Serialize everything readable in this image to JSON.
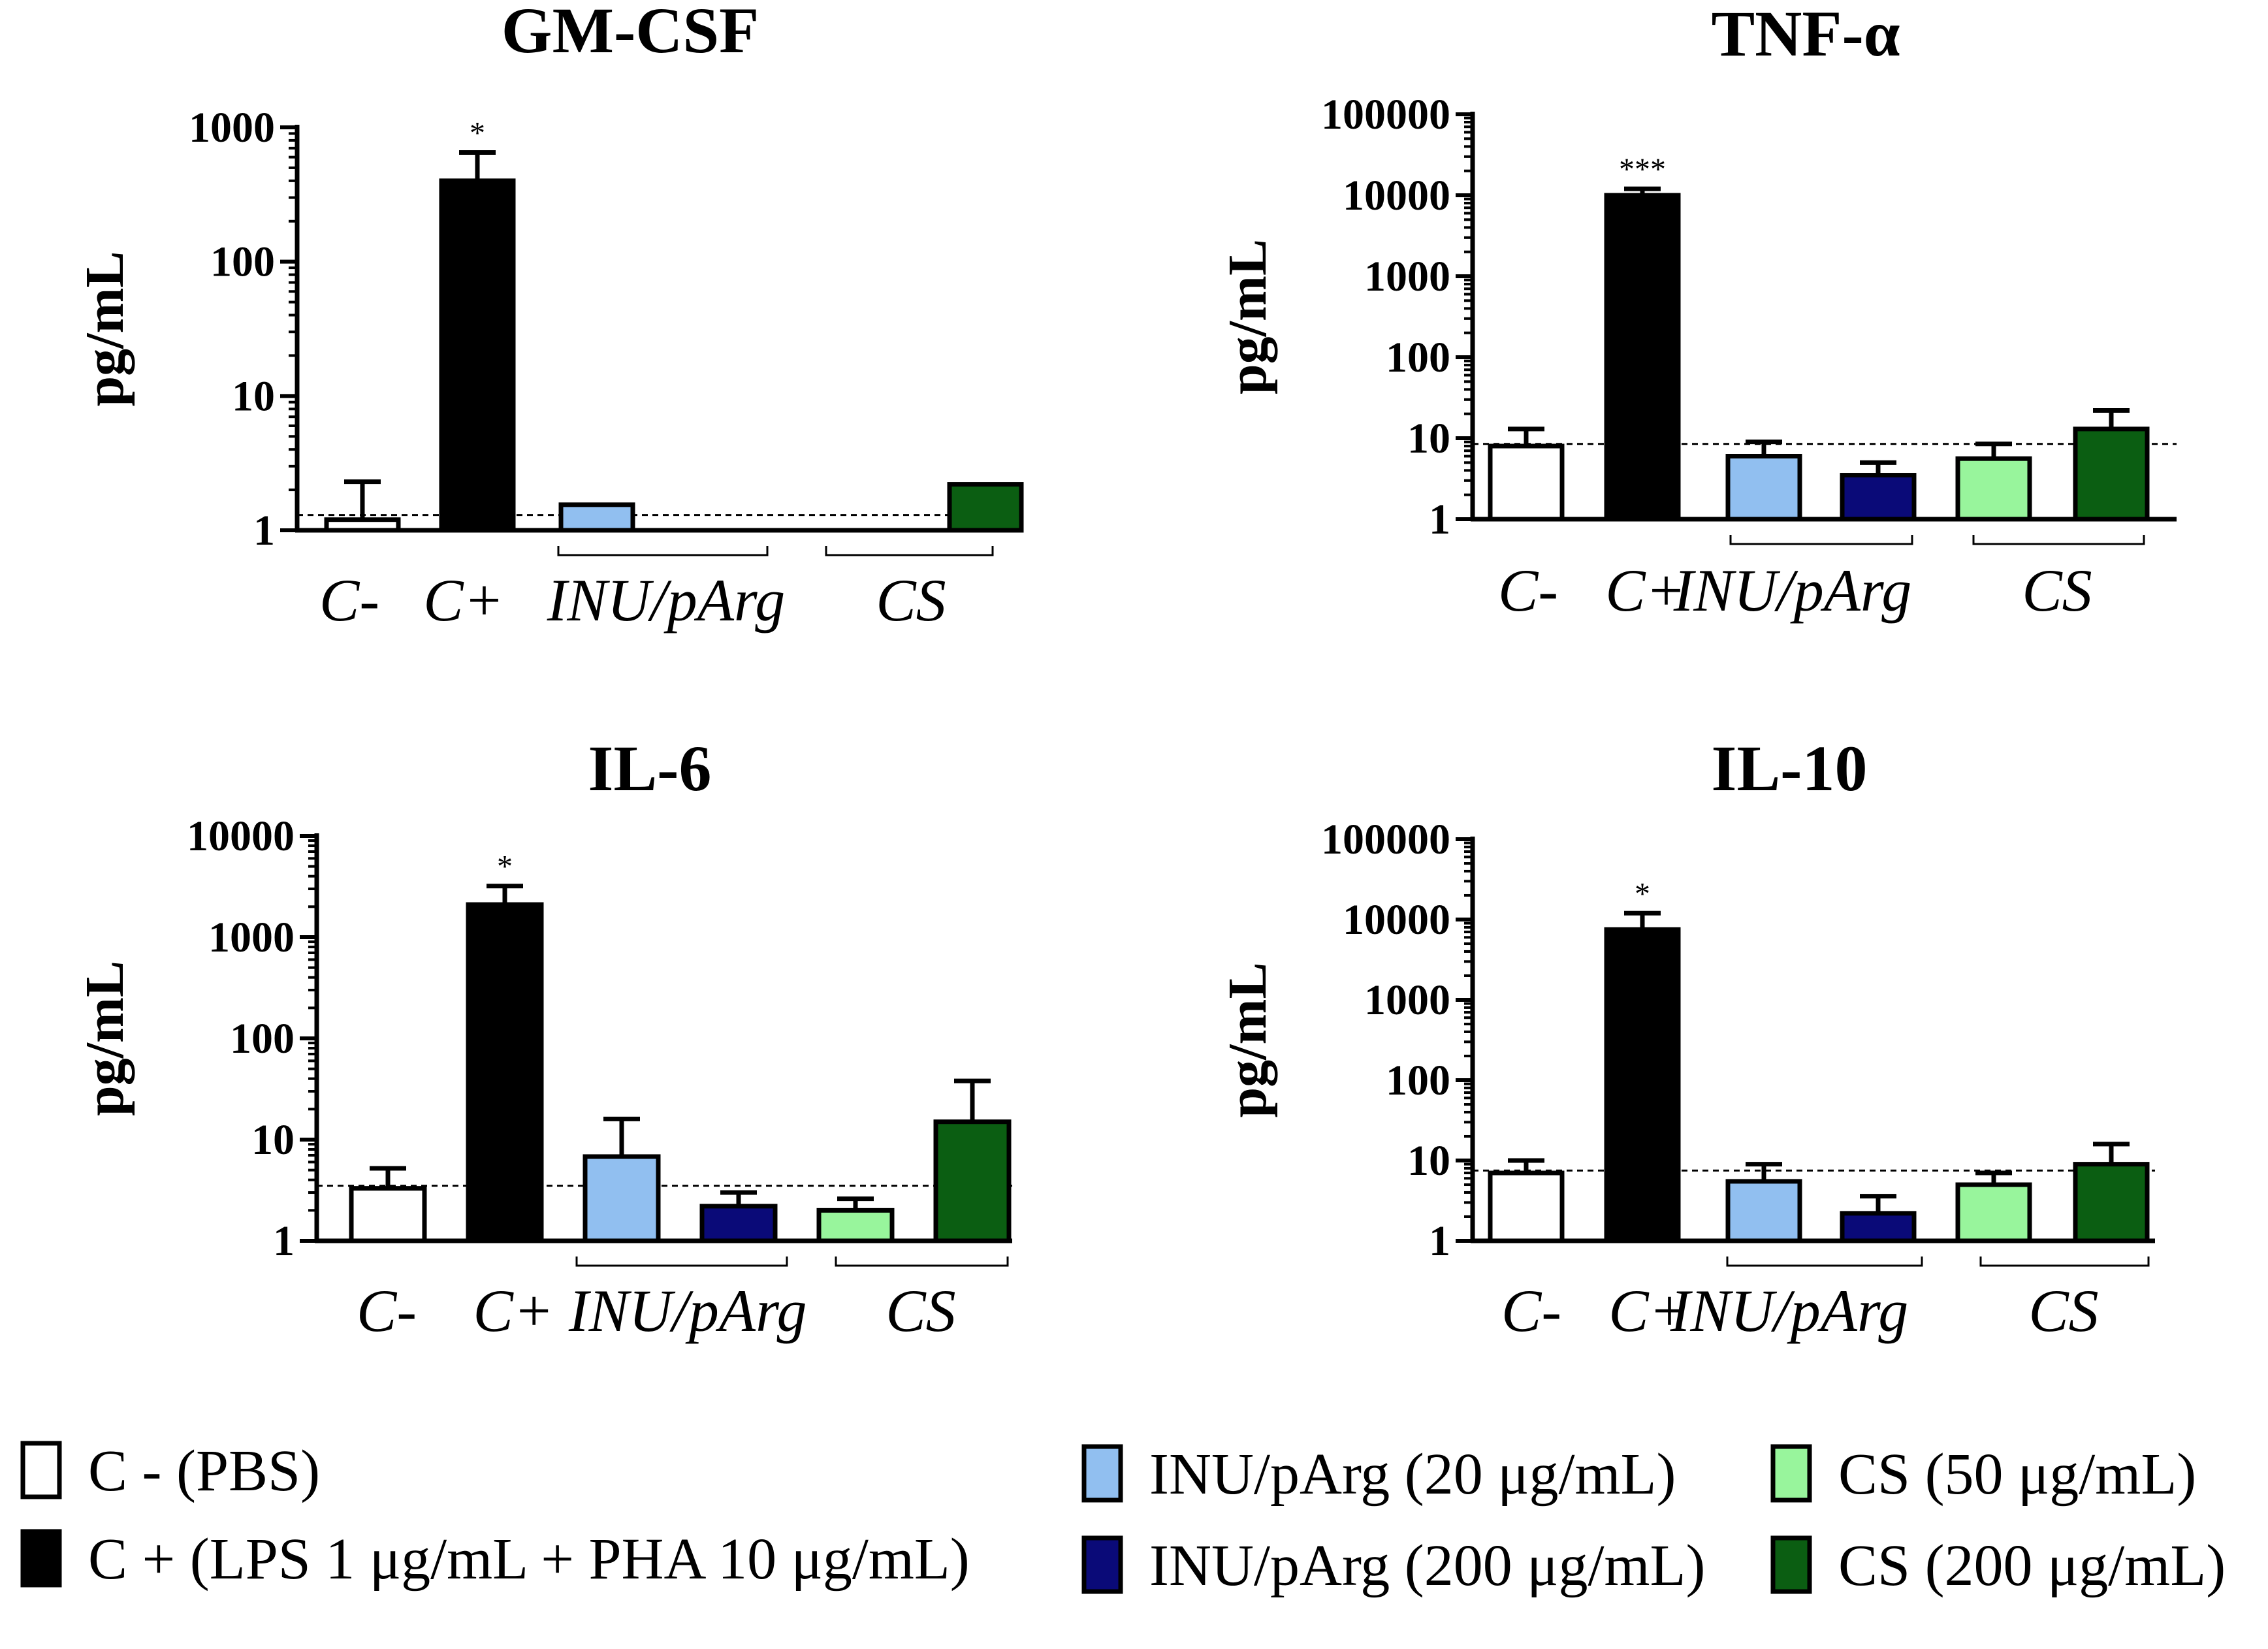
{
  "chart_data": [
    {
      "type": "bar",
      "title": "GM-CSF",
      "ylabel": "pg/mL",
      "yscale": "log",
      "ylim": [
        1,
        1000
      ],
      "yticks": [
        "1",
        "10",
        "100",
        "1000"
      ],
      "categories": [
        "C-",
        "C+",
        "INU/pArg",
        "CS"
      ],
      "series": [
        {
          "name": "C - (PBS)",
          "value": 1.2,
          "error": 2.3
        },
        {
          "name": "C + (LPS 1 μg/mL + PHA 10 μg/mL)",
          "value": 400,
          "error": 650,
          "significance": "*"
        },
        {
          "name": "INU/pArg (20 μg/mL)",
          "value": 1.55,
          "error": null
        },
        {
          "name": "INU/pArg (200 μg/mL)",
          "value": null,
          "error": null
        },
        {
          "name": "CS (50 μg/mL)",
          "value": null,
          "error": null
        },
        {
          "name": "CS (200 μg/mL)",
          "value": 2.2,
          "error": null
        }
      ],
      "detection_limit": 1.3
    },
    {
      "type": "bar",
      "title": "TNF-α",
      "ylabel": "pg/mL",
      "yscale": "log",
      "ylim": [
        1,
        100000
      ],
      "yticks": [
        "1",
        "10",
        "100",
        "1000",
        "10000",
        "100000"
      ],
      "categories": [
        "C-",
        "C+",
        "INU/pArg",
        "CS"
      ],
      "series": [
        {
          "name": "C - (PBS)",
          "value": 8,
          "error": 13
        },
        {
          "name": "C + (LPS 1 μg/mL + PHA 10 μg/mL)",
          "value": 10000,
          "error": 12000,
          "significance": "***"
        },
        {
          "name": "INU/pArg (20 μg/mL)",
          "value": 6,
          "error": 9
        },
        {
          "name": "INU/pArg (200 μg/mL)",
          "value": 3.5,
          "error": 5
        },
        {
          "name": "CS (50 μg/mL)",
          "value": 5.6,
          "error": 8.5
        },
        {
          "name": "CS (200 μg/mL)",
          "value": 13,
          "error": 22
        }
      ],
      "detection_limit": 8.5
    },
    {
      "type": "bar",
      "title": "IL-6",
      "ylabel": "pg/mL",
      "yscale": "log",
      "ylim": [
        1,
        10000
      ],
      "yticks": [
        "1",
        "10",
        "100",
        "1000",
        "10000"
      ],
      "categories": [
        "C-",
        "C+",
        "INU/pArg",
        "CS"
      ],
      "series": [
        {
          "name": "C - (PBS)",
          "value": 3.3,
          "error": 5.2
        },
        {
          "name": "C + (LPS 1 μg/mL + PHA 10 μg/mL)",
          "value": 2100,
          "error": 3200,
          "significance": "*"
        },
        {
          "name": "INU/pArg (20 μg/mL)",
          "value": 6.8,
          "error": 16
        },
        {
          "name": "INU/pArg (200 μg/mL)",
          "value": 2.2,
          "error": 3
        },
        {
          "name": "CS (50 μg/mL)",
          "value": 2,
          "error": 2.6
        },
        {
          "name": "CS (200 μg/mL)",
          "value": 15,
          "error": 38
        }
      ],
      "detection_limit": 3.5
    },
    {
      "type": "bar",
      "title": "IL-10",
      "ylabel": "pg/mL",
      "yscale": "log",
      "ylim": [
        1,
        100000
      ],
      "yticks": [
        "1",
        "10",
        "100",
        "1000",
        "10000",
        "100000"
      ],
      "categories": [
        "C-",
        "C+",
        "INU/pArg",
        "CS"
      ],
      "series": [
        {
          "name": "C - (PBS)",
          "value": 7,
          "error": 10
        },
        {
          "name": "C + (LPS 1 μg/mL + PHA 10 μg/mL)",
          "value": 7500,
          "error": 12000,
          "significance": "*"
        },
        {
          "name": "INU/pArg (20 μg/mL)",
          "value": 5.5,
          "error": 9
        },
        {
          "name": "INU/pArg (200 μg/mL)",
          "value": 2.2,
          "error": 3.6
        },
        {
          "name": "CS (50 μg/mL)",
          "value": 5,
          "error": 7
        },
        {
          "name": "CS (200 μg/mL)",
          "value": 9,
          "error": 16
        }
      ],
      "detection_limit": 7.5
    }
  ],
  "legend": {
    "placement": "bottom",
    "items": [
      {
        "label": "C - (PBS)",
        "color": "#ffffff"
      },
      {
        "label": "C + (LPS 1 μg/mL + PHA 10 μg/mL)",
        "color": "#000000"
      },
      {
        "label": "INU/pArg (20 μg/mL)",
        "color": "#91bff0"
      },
      {
        "label": "INU/pArg (200 μg/mL)",
        "color": "#0a0a78"
      },
      {
        "label": "CS (50 μg/mL)",
        "color": "#98f59c"
      },
      {
        "label": "CS (200 μg/mL)",
        "color": "#0b5e12"
      }
    ]
  }
}
